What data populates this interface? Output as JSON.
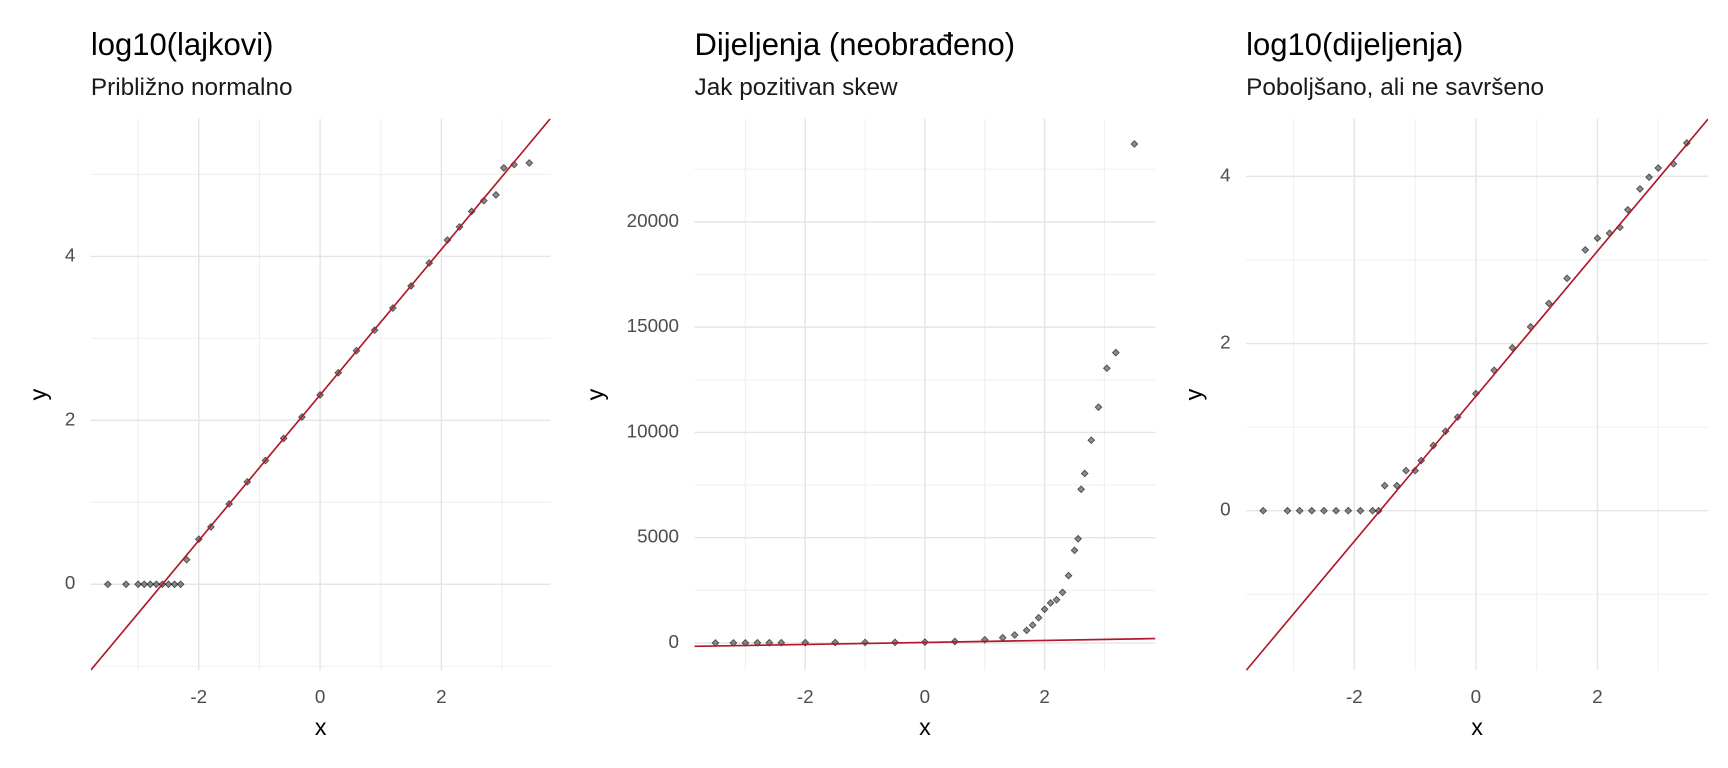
{
  "chart_data": [
    {
      "type": "scatter",
      "title": "log10(lajkovi)",
      "subtitle": "Približno normalno",
      "x_label": "x",
      "y_label": "y",
      "xlim": [
        -3.78,
        3.8
      ],
      "ylim": [
        -1.05,
        5.68
      ],
      "xticks": [
        -2,
        0,
        2
      ],
      "yticks": [
        0,
        2,
        4
      ],
      "grid": true,
      "color": "#000000",
      "x": [
        -3.5,
        -3.2,
        -3.0,
        -2.9,
        -2.8,
        -2.7,
        -2.6,
        -2.5,
        -2.4,
        -2.3,
        -2.2,
        -2.0,
        -1.8,
        -1.5,
        -1.2,
        -0.9,
        -0.6,
        -0.3,
        0,
        0.3,
        0.6,
        0.9,
        1.2,
        1.5,
        1.8,
        2.1,
        2.3,
        2.5,
        2.7,
        2.9,
        3.03,
        3.2,
        3.45
      ],
      "values": [
        0,
        0,
        0,
        0,
        0,
        0,
        0,
        0,
        0,
        0,
        0.3,
        0.55,
        0.7,
        0.98,
        1.25,
        1.51,
        1.78,
        2.04,
        2.31,
        2.58,
        2.85,
        3.1,
        3.37,
        3.64,
        3.92,
        4.2,
        4.36,
        4.55,
        4.68,
        4.75,
        5.08,
        5.12,
        5.14
      ],
      "line": {
        "intercept": 2.31,
        "slope": 0.888,
        "color": "#b2182b"
      }
    },
    {
      "type": "scatter",
      "title": "Dijeljenja (neobrađeno)",
      "subtitle": "Jak pozitivan skew",
      "x_label": "x",
      "y_label": "y",
      "xlim": [
        -3.85,
        3.85
      ],
      "ylim": [
        -1300,
        24900
      ],
      "xticks": [
        -2,
        0,
        2
      ],
      "yticks": [
        0,
        5000,
        10000,
        15000,
        20000
      ],
      "grid": true,
      "color": "#000000",
      "x": [
        -3.5,
        -3.2,
        -3,
        -2.8,
        -2.6,
        -2.4,
        -2,
        -1.5,
        -1,
        -0.5,
        0,
        0.5,
        1,
        1.3,
        1.5,
        1.7,
        1.8,
        1.9,
        2,
        2.1,
        2.2,
        2.3,
        2.4,
        2.5,
        2.56,
        2.61,
        2.67,
        2.78,
        2.9,
        3.04,
        3.19,
        3.5
      ],
      "values": [
        0,
        2,
        5,
        8,
        10,
        12,
        15,
        20,
        25,
        30,
        40,
        70,
        150,
        250,
        380,
        600,
        850,
        1200,
        1600,
        1900,
        2050,
        2400,
        3200,
        4400,
        4950,
        7300,
        8050,
        9630,
        11200,
        13050,
        13790,
        23700
      ],
      "line": {
        "intercept": 25,
        "slope": 48,
        "color": "#b2182b"
      }
    },
    {
      "type": "scatter",
      "title": "log10(dijeljenja)",
      "subtitle": "Poboljšano, ali ne savršeno",
      "x_label": "x",
      "y_label": "y",
      "xlim": [
        -3.78,
        3.82
      ],
      "ylim": [
        -1.91,
        4.69
      ],
      "xticks": [
        -2,
        0,
        2
      ],
      "yticks": [
        0,
        2,
        4
      ],
      "grid": true,
      "color": "#000000",
      "x": [
        -3.5,
        -3.1,
        -2.9,
        -2.7,
        -2.5,
        -2.3,
        -2.1,
        -1.9,
        -1.7,
        -1.6,
        -1.5,
        -1.3,
        -1.15,
        -1.0,
        -0.9,
        -0.7,
        -0.5,
        -0.3,
        0,
        0.3,
        0.6,
        0.9,
        1.2,
        1.5,
        1.8,
        2.0,
        2.2,
        2.37,
        2.5,
        2.7,
        2.85,
        3.0,
        3.25,
        3.47
      ],
      "values": [
        0,
        0,
        0,
        0,
        0,
        0,
        0,
        0,
        0,
        0,
        0.3,
        0.3,
        0.48,
        0.48,
        0.6,
        0.78,
        0.95,
        1.12,
        1.4,
        1.68,
        1.95,
        2.2,
        2.48,
        2.78,
        3.12,
        3.26,
        3.32,
        3.39,
        3.6,
        3.85,
        3.99,
        4.1,
        4.15,
        4.4
      ],
      "line": {
        "intercept": 1.37,
        "slope": 0.868,
        "color": "#b2182b"
      }
    }
  ]
}
